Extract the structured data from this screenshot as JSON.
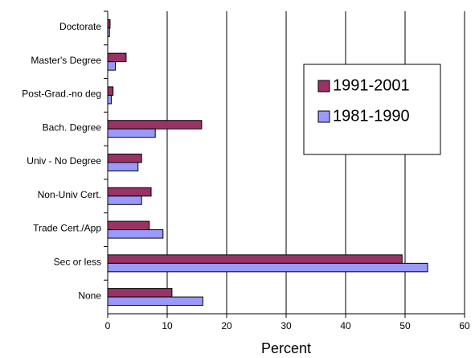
{
  "chart_data": {
    "type": "hbar",
    "categories": [
      "Doctorate",
      "Master's Degree",
      "Post-Grad.-no deg",
      "Bach. Degree",
      "Univ - No Degree",
      "Non-Univ Cert.",
      "Trade Cert./App",
      "Sec or less",
      "None"
    ],
    "series": [
      {
        "name": "1991-2001",
        "color": "#993366",
        "values": [
          0.4,
          3.1,
          0.9,
          15.8,
          5.7,
          7.3,
          7.0,
          49.5,
          10.8
        ]
      },
      {
        "name": "1981-1990",
        "color": "#9999ff",
        "values": [
          0.3,
          1.3,
          0.6,
          8.0,
          5.1,
          5.7,
          9.3,
          53.8,
          16.0
        ]
      }
    ],
    "xlabel": "Percent",
    "xlim": [
      0,
      60
    ],
    "xticks": [
      0,
      10,
      20,
      30,
      40,
      50,
      60
    ],
    "grid": true
  }
}
